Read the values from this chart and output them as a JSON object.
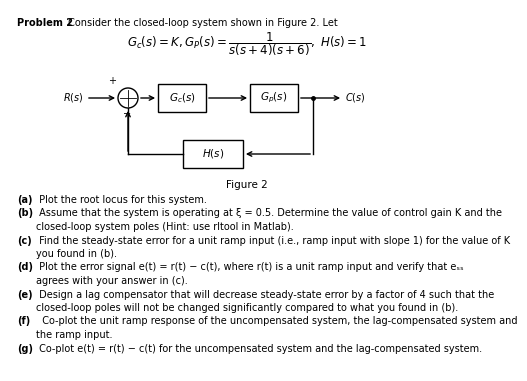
{
  "bg_color": "#ffffff",
  "text_color": "#000000",
  "title_bold": "Problem 2",
  "title_rest": " Consider the closed-loop system shown in Figure 2. Let",
  "equation": "$G_c(s) = K, G_P(s) = \\dfrac{1}{s(s+4)(s+6)},\\ H(s) = 1$",
  "figure_label": "Figure 2",
  "gc_label": "$G_c(s)$",
  "gp_label": "$G_p(s)$",
  "hs_label": "$H(s)$",
  "rs_label": "$R(s)$",
  "cs_label": "$C(s)$",
  "plus_label": "+",
  "minus_label": "−",
  "parts_bold": [
    "(a)",
    "(b)",
    "(c)",
    "(d)",
    "(e)",
    "(f)",
    "(g)"
  ],
  "parts_text": [
    " Plot the root locus for this system.",
    " Assume that the system is operating at ξ = 0.5. Determine the value of control gain K and the",
    " Find the steady-state error for a unit ramp input (i.e., ramp input with slope 1) for the value of K",
    " Plot the error signal e(t) = r(t) − c(t), where r(t) is a unit ramp input and verify that e_ss",
    " Design a lag compensator that will decrease steady-state error by a factor of 4 such that the",
    " Co-plot the unit ramp response of the uncompensated system, the lag-compensated system and",
    " Co-plot e(t) = r(t) − c(t) for the uncompensated system and the lag-compensated system."
  ],
  "parts_cont": [
    "",
    "   closed-loop system poles (Hint: use rltool in Matlab).",
    "   you found in (b).",
    "   agrees with your answer in (c).",
    "   closed-loop poles will not be changed significantly compared to what you found in (b).",
    "   the ramp input.",
    ""
  ]
}
